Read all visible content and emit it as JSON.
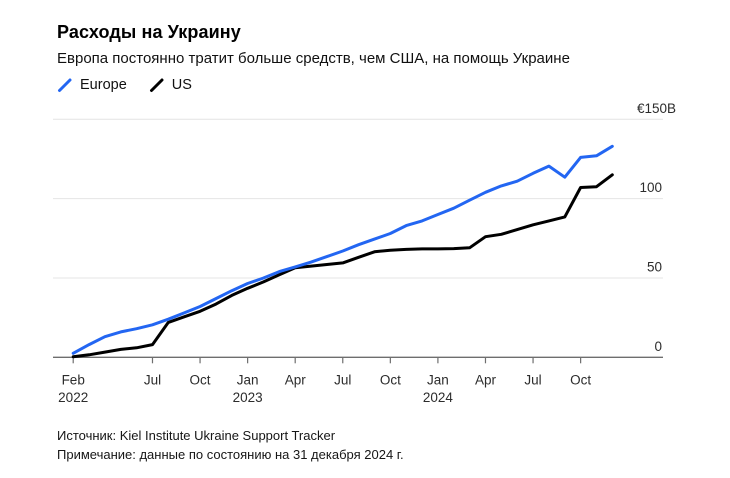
{
  "header": {
    "title": "Расходы на Украину",
    "subtitle": "Европа постоянно тратит больше средств, чем США, на помощь Украине"
  },
  "legend": [
    {
      "label": "Europe",
      "color": "#2366f2"
    },
    {
      "label": "US",
      "color": "#000000"
    }
  ],
  "footer": {
    "source": "Источник: Kiel Institute Ukraine Support Tracker",
    "note": "Примечание: данные по состоянию на 31 декабря 2024 г."
  },
  "chart_data": {
    "type": "line",
    "title": "Расходы на Украину",
    "unit": "€B",
    "ylim": [
      0,
      150
    ],
    "grid": true,
    "legend_position": "top-left",
    "x": [
      "Feb 2022",
      "Mar 2022",
      "Apr 2022",
      "May 2022",
      "Jun 2022",
      "Jul 2022",
      "Aug 2022",
      "Sep 2022",
      "Oct 2022",
      "Nov 2022",
      "Dec 2022",
      "Jan 2023",
      "Feb 2023",
      "Mar 2023",
      "Apr 2023",
      "May 2023",
      "Jun 2023",
      "Jul 2023",
      "Aug 2023",
      "Sep 2023",
      "Oct 2023",
      "Nov 2023",
      "Dec 2023",
      "Jan 2024",
      "Feb 2024",
      "Mar 2024",
      "Apr 2024",
      "May 2024",
      "Jun 2024",
      "Jul 2024",
      "Aug 2024",
      "Sep 2024",
      "Oct 2024",
      "Nov 2024",
      "Dec 2024"
    ],
    "series": [
      {
        "name": "Europe",
        "color": "#2366f2",
        "values": [
          2.5,
          8,
          13,
          16,
          18,
          20.5,
          24,
          28,
          32,
          37,
          42,
          46.5,
          50,
          54,
          57,
          60,
          63.5,
          67,
          71,
          74.5,
          78,
          83,
          86,
          90,
          94,
          99,
          104,
          108,
          111,
          116,
          120.5,
          113.5,
          126,
          127,
          133
        ]
      },
      {
        "name": "US",
        "color": "#000000",
        "values": [
          0.3,
          1.6,
          3.3,
          5,
          6,
          8,
          22,
          25.5,
          29,
          33.5,
          39,
          43.5,
          47.5,
          52,
          56.5,
          57.5,
          58.5,
          59.5,
          63,
          66.5,
          67.5,
          68,
          68.3,
          68.3,
          68.5,
          69,
          76,
          77.5,
          80.5,
          83.5,
          86,
          88.5,
          107,
          107.5,
          115
        ]
      }
    ],
    "yticks": [
      {
        "v": 0,
        "label": "0"
      },
      {
        "v": 50,
        "label": "50"
      },
      {
        "v": 100,
        "label": "100"
      },
      {
        "v": 150,
        "label": "€150B"
      }
    ],
    "xticks": [
      {
        "m": 0,
        "label": "Feb",
        "year": "2022"
      },
      {
        "m": 5,
        "label": "Jul"
      },
      {
        "m": 8,
        "label": "Oct"
      },
      {
        "m": 11,
        "label": "Jan",
        "year": "2023"
      },
      {
        "m": 14,
        "label": "Apr"
      },
      {
        "m": 17,
        "label": "Jul"
      },
      {
        "m": 20,
        "label": "Oct"
      },
      {
        "m": 23,
        "label": "Jan",
        "year": "2024"
      },
      {
        "m": 26,
        "label": "Apr"
      },
      {
        "m": 29,
        "label": "Jul"
      },
      {
        "m": 32,
        "label": "Oct"
      }
    ],
    "colors": {
      "grid": "#e4e4e4",
      "axis": "#6e6e6e",
      "tick_label": "#2c2c2c"
    }
  }
}
